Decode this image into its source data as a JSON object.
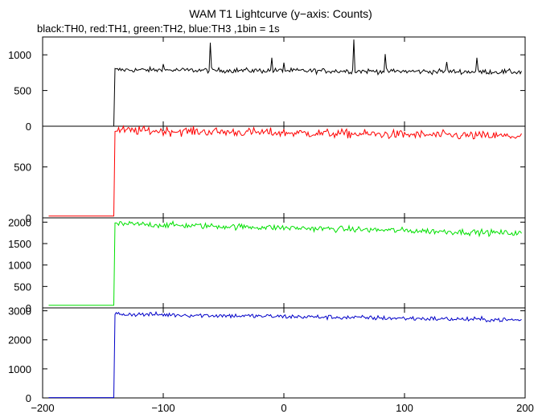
{
  "chart_data": {
    "type": "line",
    "title": "WAM T1 Lightcurve (y−axis: Counts)",
    "subtitle": "black:TH0, red:TH1, green:TH2, blue:TH3 ,1bin = 1s",
    "x_range": [
      -200,
      200
    ],
    "x_ticks": [
      -200,
      -100,
      0,
      100,
      200
    ],
    "x_tick_labels": [
      "−200",
      "−100",
      "0",
      "100",
      "200"
    ],
    "step_time": -140,
    "panels": [
      {
        "series": "TH0",
        "color": "#000000",
        "ylim": [
          0,
          1250
        ],
        "y_ticks": [
          0,
          500,
          1000
        ],
        "pre_level": 0,
        "post_start": 790,
        "post_end": 760,
        "noise": 18,
        "spikes": [
          {
            "x": -61,
            "y": 1170
          },
          {
            "x": -10,
            "y": 960
          },
          {
            "x": 0,
            "y": 890
          },
          {
            "x": 58,
            "y": 1215
          },
          {
            "x": 84,
            "y": 1010
          },
          {
            "x": 160,
            "y": 960
          },
          {
            "x": 135,
            "y": 900
          },
          {
            "x": -100,
            "y": 870
          }
        ]
      },
      {
        "series": "TH1",
        "color": "#ff0000",
        "ylim": [
          0,
          900
        ],
        "y_ticks": [
          0,
          500
        ],
        "pre_level": 18,
        "post_start": 860,
        "post_end": 800,
        "noise": 22,
        "spikes": []
      },
      {
        "series": "TH2",
        "color": "#00e000",
        "ylim": [
          0,
          2100
        ],
        "y_ticks": [
          0,
          500,
          1000,
          1500,
          2000
        ],
        "pre_level": 60,
        "post_start": 1960,
        "post_end": 1740,
        "noise": 35,
        "spikes": []
      },
      {
        "series": "TH3",
        "color": "#0000c8",
        "ylim": [
          0,
          3100
        ],
        "y_ticks": [
          0,
          1000,
          2000,
          3000
        ],
        "pre_level": 10,
        "post_start": 2890,
        "post_end": 2680,
        "noise": 40,
        "spikes": []
      }
    ]
  }
}
